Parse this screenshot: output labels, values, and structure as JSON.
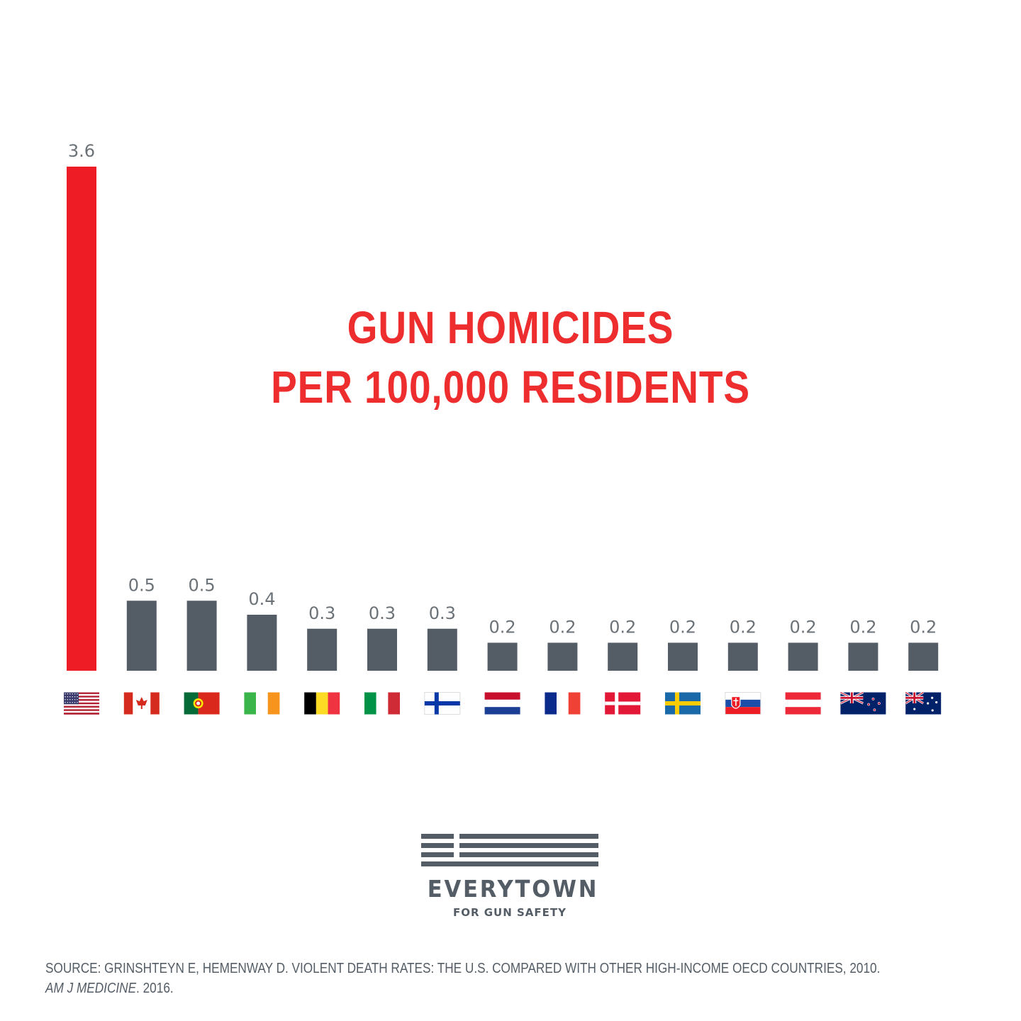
{
  "title": {
    "line1": "GUN HOMICIDES",
    "line2": "PER 100,000 RESIDENTS"
  },
  "chart_data": {
    "type": "bar",
    "title": "GUN HOMICIDES PER 100,000 RESIDENTS",
    "categories": [
      "United States",
      "Canada",
      "Portugal",
      "Ireland",
      "Belgium",
      "Italy",
      "Finland",
      "Netherlands",
      "France",
      "Denmark",
      "Sweden",
      "Slovakia",
      "Austria",
      "New Zealand",
      "Australia"
    ],
    "flags": [
      "us",
      "ca",
      "pt",
      "ie",
      "be",
      "it",
      "fi",
      "nl",
      "fr",
      "dk",
      "se",
      "sk",
      "at",
      "nz",
      "au"
    ],
    "values": [
      3.6,
      0.5,
      0.5,
      0.4,
      0.3,
      0.3,
      0.3,
      0.2,
      0.2,
      0.2,
      0.2,
      0.2,
      0.2,
      0.2,
      0.2
    ],
    "labels": [
      "3.6",
      "0.5",
      "0.5",
      "0.4",
      "0.3",
      "0.3",
      "0.3",
      "0.2",
      "0.2",
      "0.2",
      "0.2",
      "0.2",
      "0.2",
      "0.2",
      "0.2"
    ],
    "highlight_index": 0,
    "colors": {
      "highlight": "#ee1c25",
      "default": "#545d66"
    },
    "ylim": [
      0,
      3.6
    ],
    "xlabel": "",
    "ylabel": "",
    "grid": false,
    "legend": "none"
  },
  "logo": {
    "name": "EVERYTOWN",
    "tagline": "FOR GUN SAFETY"
  },
  "source": {
    "line1": "SOURCE: GRINSHTEYN E, HEMENWAY D. VIOLENT DEATH RATES: THE U.S. COMPARED WITH OTHER HIGH-INCOME OECD COUNTRIES, 2010.",
    "journal": "AM J MEDICINE",
    "year": ". 2016."
  }
}
